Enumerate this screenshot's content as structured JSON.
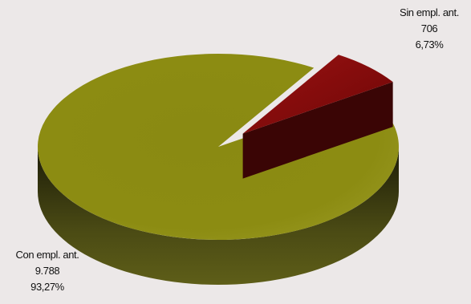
{
  "chart_data": {
    "type": "pie",
    "style": "3d-exploded",
    "slices": [
      {
        "label": "Sin empl. ant.",
        "value": 706,
        "value_text": "706",
        "percent": 6.73,
        "percent_text": "6,73%",
        "color": "#8B1010",
        "exploded": true
      },
      {
        "label": "Con empl. ant.",
        "value": 9788,
        "value_text": "9.788",
        "percent": 93.27,
        "percent_text": "93,27%",
        "color": "#8C8C10",
        "exploded": false
      }
    ],
    "title": "",
    "legend": "none"
  }
}
